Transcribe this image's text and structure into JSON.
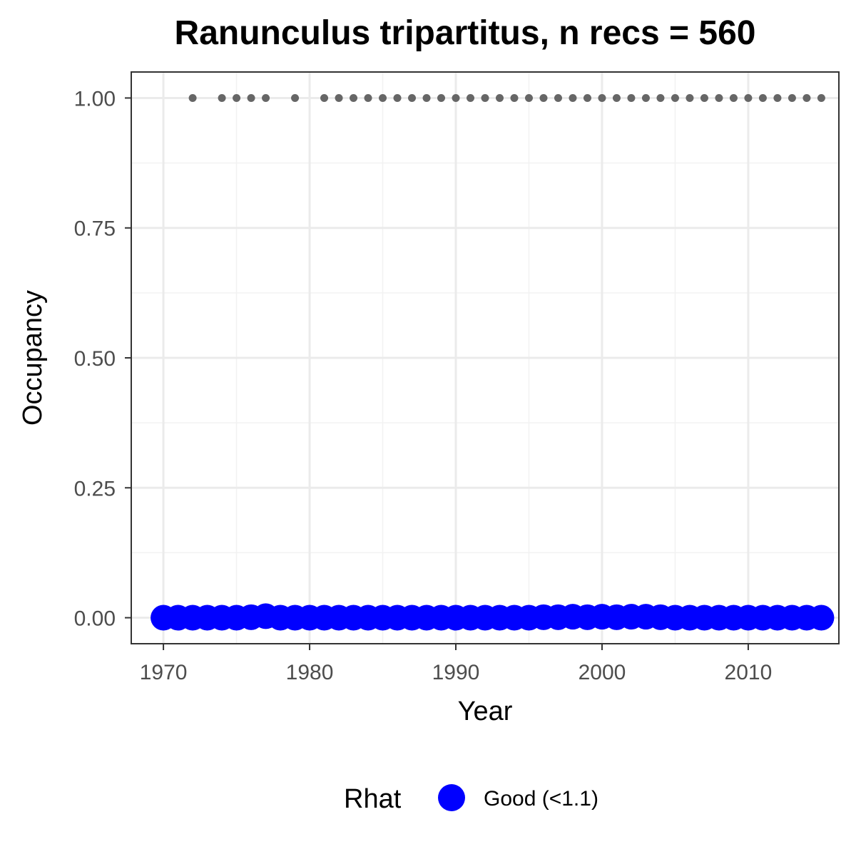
{
  "chart_data": {
    "type": "scatter",
    "title": "Ranunculus tripartitus, n recs = 560",
    "xlabel": "Year",
    "ylabel": "Occupancy",
    "xlim": [
      1967.8,
      2016.2
    ],
    "ylim": [
      -0.05,
      1.05
    ],
    "x_ticks": [
      1970,
      1980,
      1990,
      2000,
      2010
    ],
    "x_tick_labels": [
      "1970",
      "1980",
      "1990",
      "2000",
      "2010"
    ],
    "y_ticks": [
      0,
      0.25,
      0.5,
      0.75,
      1.0
    ],
    "y_tick_labels": [
      "0.00",
      "0.25",
      "0.50",
      "0.75",
      "1.00"
    ],
    "grid": true,
    "legend": {
      "title": "Rhat",
      "position": "bottom",
      "entries": [
        {
          "label": "Good (<1.1)",
          "color": "#0000ff"
        }
      ]
    },
    "series": [
      {
        "name": "Good (<1.1)",
        "color": "#0000ff",
        "x": [
          1970,
          1971,
          1972,
          1973,
          1974,
          1975,
          1976,
          1977,
          1978,
          1979,
          1980,
          1981,
          1982,
          1983,
          1984,
          1985,
          1986,
          1987,
          1988,
          1989,
          1990,
          1991,
          1992,
          1993,
          1994,
          1995,
          1996,
          1997,
          1998,
          1999,
          2000,
          2001,
          2002,
          2003,
          2004,
          2005,
          2006,
          2007,
          2008,
          2009,
          2010,
          2011,
          2012,
          2013,
          2014,
          2015
        ],
        "y": [
          0,
          0,
          0,
          0,
          0,
          0,
          0.001,
          0.003,
          0,
          0,
          0,
          0,
          0,
          0,
          0,
          0,
          0,
          0,
          0,
          0,
          0,
          0,
          0,
          0,
          0,
          0,
          0.001,
          0.001,
          0.002,
          0.001,
          0.002,
          0.001,
          0.002,
          0.002,
          0.001,
          0,
          0,
          0,
          0,
          0,
          0,
          0,
          0,
          0,
          0,
          0
        ]
      },
      {
        "color": "#666666",
        "x": [
          1972,
          1974,
          1975,
          1976,
          1977,
          1979,
          1981,
          1982,
          1983,
          1984,
          1985,
          1986,
          1987,
          1988,
          1989,
          1990,
          1991,
          1992,
          1993,
          1994,
          1995,
          1996,
          1997,
          1998,
          1999,
          2000,
          2001,
          2002,
          2003,
          2004,
          2005,
          2006,
          2007,
          2008,
          2009,
          2010,
          2011,
          2012,
          2013,
          2014,
          2015
        ],
        "y": [
          1,
          1,
          1,
          1,
          1,
          1,
          1,
          1,
          1,
          1,
          1,
          1,
          1,
          1,
          1,
          1,
          1,
          1,
          1,
          1,
          1,
          1,
          1,
          1,
          1,
          1,
          1,
          1,
          1,
          1,
          1,
          1,
          1,
          1,
          1,
          1,
          1,
          1,
          1,
          1,
          1
        ]
      }
    ]
  }
}
